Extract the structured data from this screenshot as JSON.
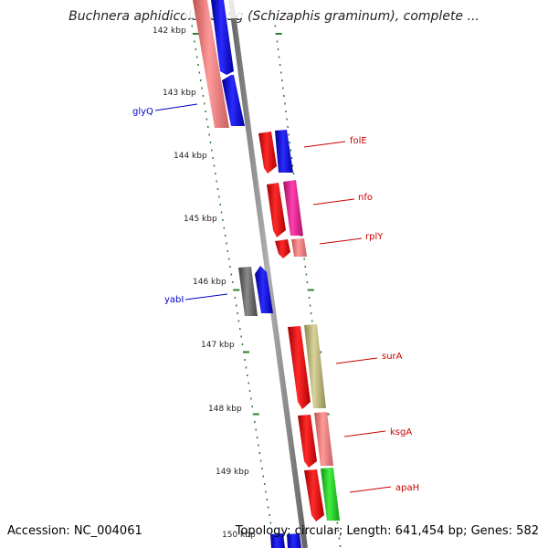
{
  "title": "Buchnera aphidicola str. Sg (Schizaphis graminum), complete ...",
  "accession": "Accession: NC_004061",
  "topology": "Topology: circular; Length: 641,454 bp; Genes: 582",
  "kbp_labels": [
    "142 kbp",
    "143 kbp",
    "144 kbp",
    "145 kbp",
    "146 kbp",
    "147 kbp",
    "148 kbp",
    "149 kbp",
    "150 kbp"
  ],
  "gene_labels": {
    "glyQ": "glyQ",
    "yabI": "yabI",
    "folE": "folE",
    "nfo": "nfo",
    "rplY": "rplY",
    "surA": "surA",
    "ksgA": "ksgA",
    "apaH": "apaH"
  },
  "colors": {
    "backbone": "#808080",
    "tick": "#2e7d2e",
    "left_label": "#0000cc",
    "right_label": "#cc0000",
    "red": "#ee1111",
    "blue": "#1111dd",
    "salmon": "#f08080",
    "magenta": "#ee2299",
    "khaki": "#bdb76b",
    "green": "#22cc22",
    "gray": "#707070"
  }
}
